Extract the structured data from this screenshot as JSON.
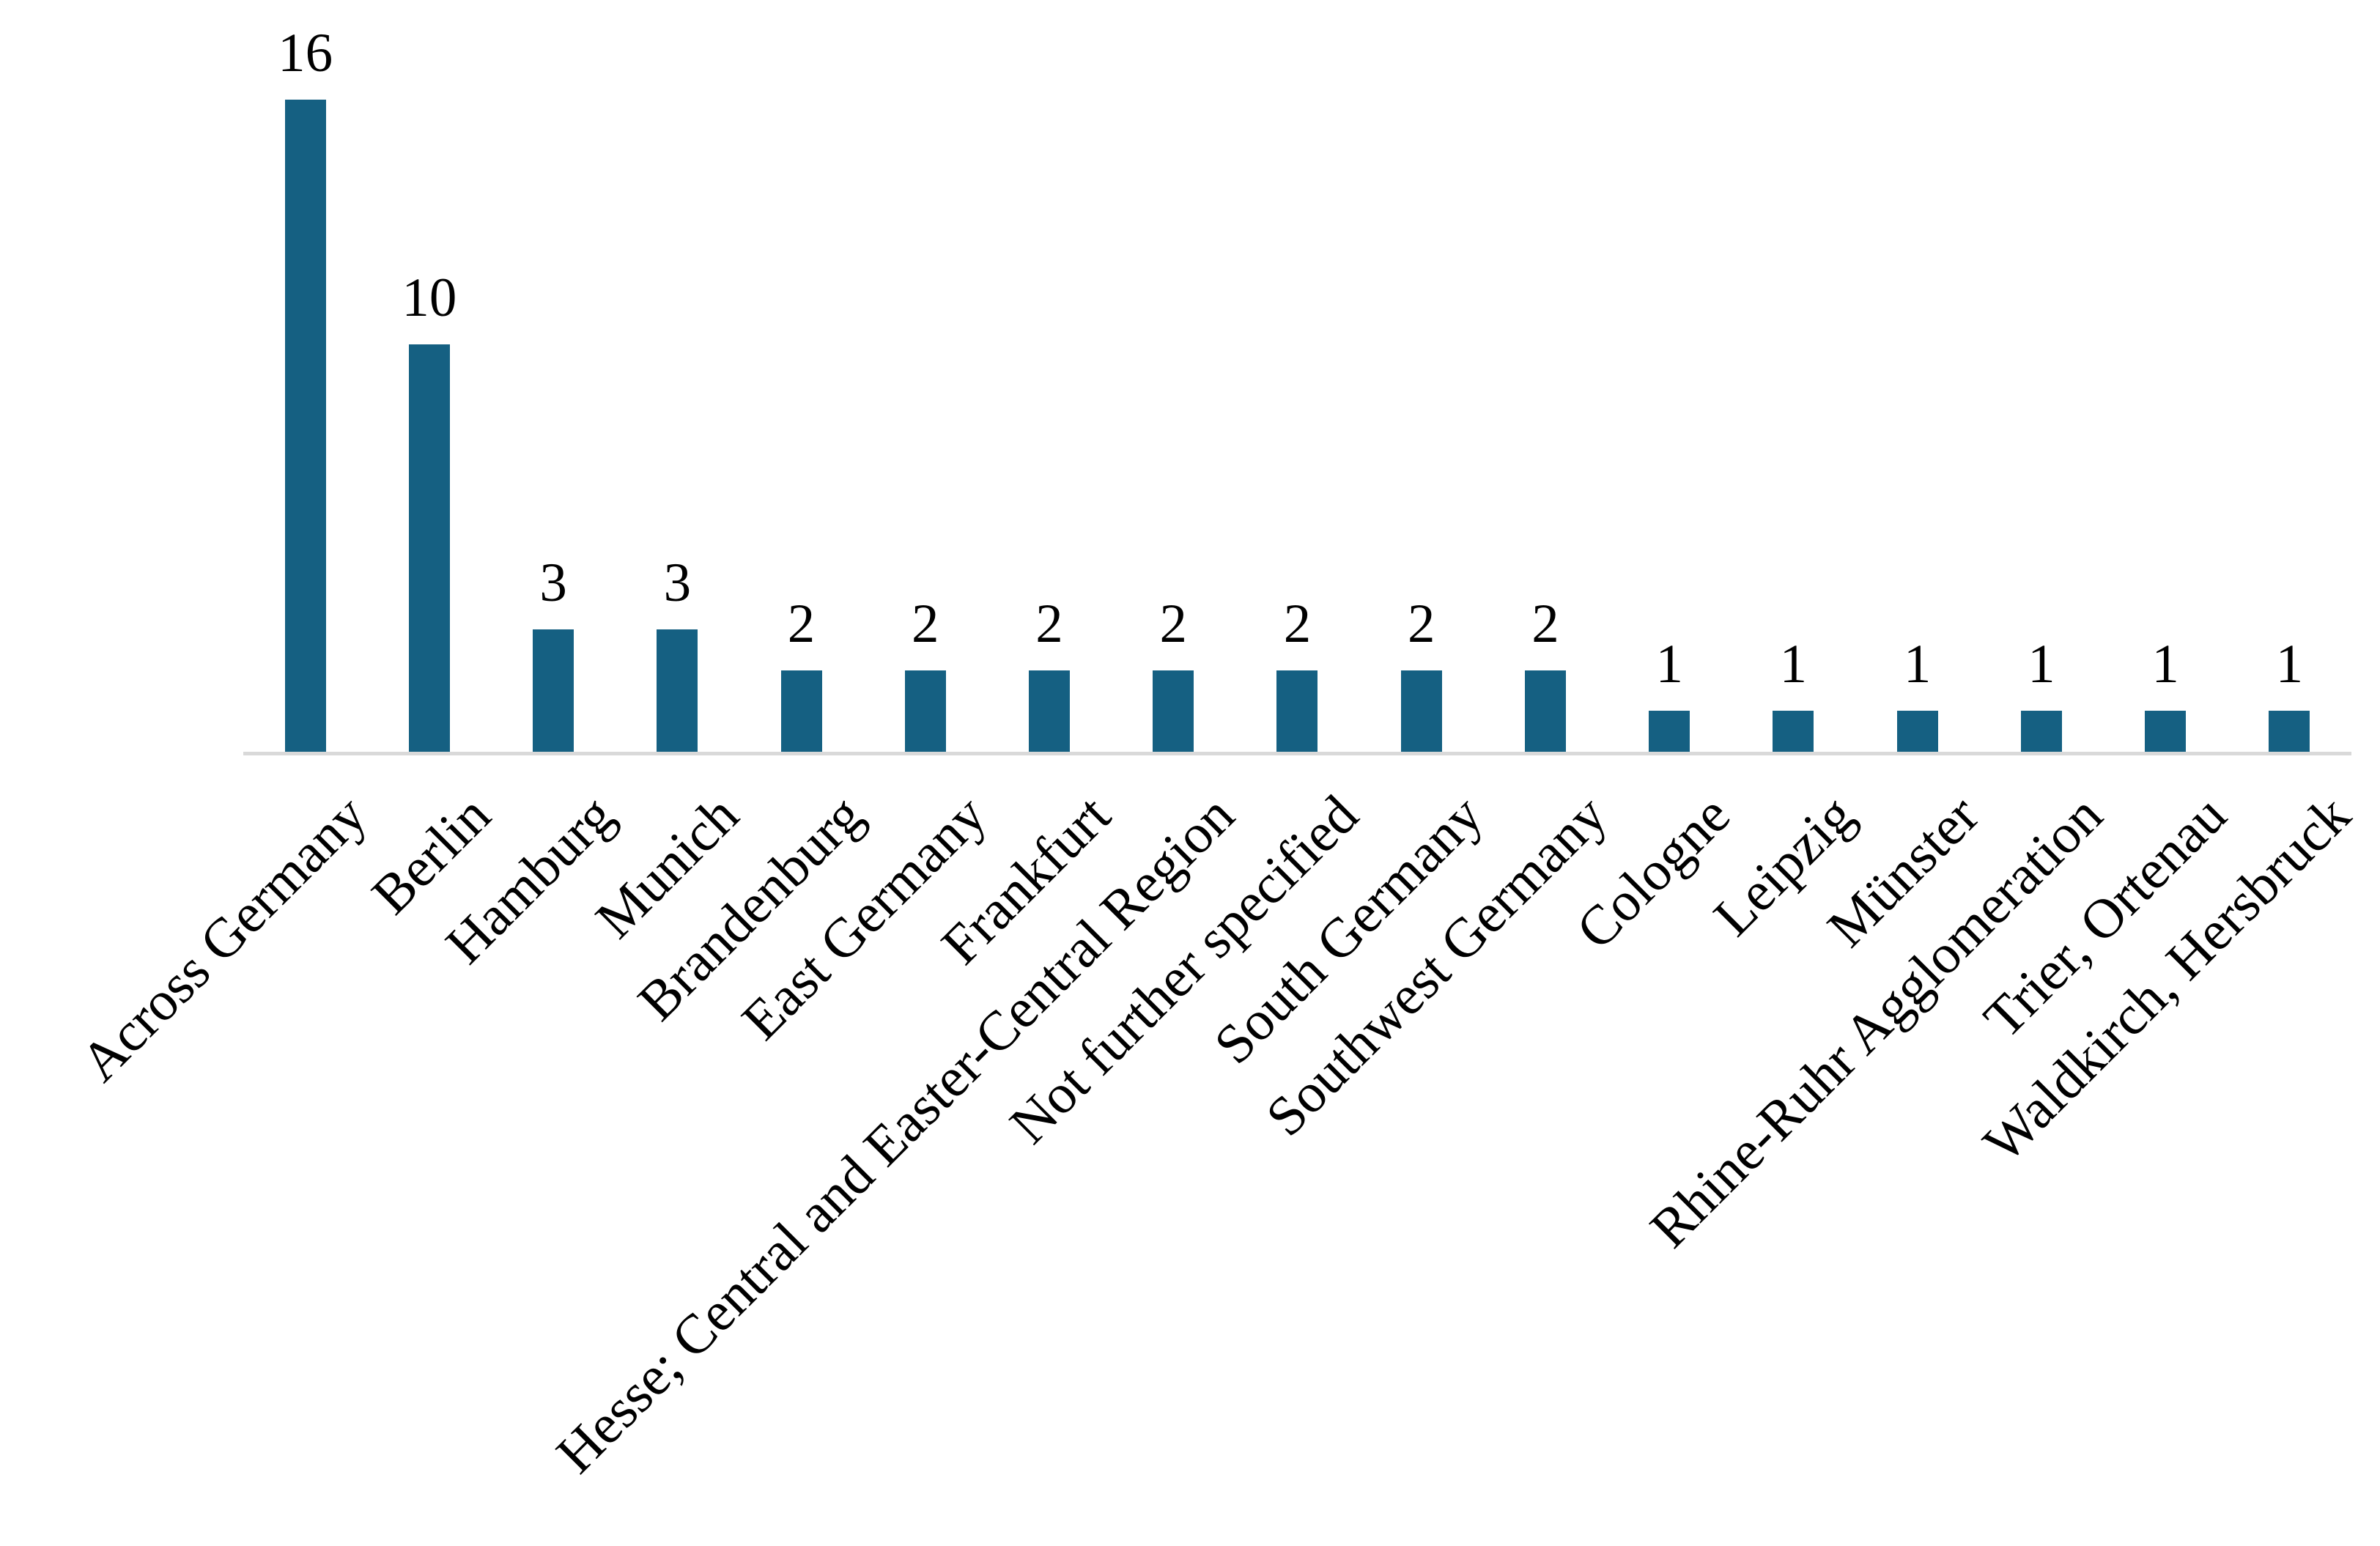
{
  "chart_data": {
    "type": "bar",
    "title": "",
    "xlabel": "",
    "ylabel": "",
    "categories": [
      "Across Germany",
      "Berlin",
      "Hamburg",
      "Munich",
      "Brandenburg",
      "East Germany",
      "Frankfurt",
      "Hesse; Central and Easter-Central Region",
      "Not further specified",
      "South Germany",
      "Southwest Germany",
      "Cologne",
      "Leipzig",
      "Münster",
      "Rhine-Ruhr Agglomeration",
      "Trier, Ortenau",
      "Waldkirch, Hersbruck"
    ],
    "values": [
      16,
      10,
      3,
      3,
      2,
      2,
      2,
      2,
      2,
      2,
      2,
      1,
      1,
      1,
      1,
      1,
      1
    ],
    "ylim": [
      0,
      16
    ],
    "grid": false,
    "legend": null,
    "value_labels_shown": true,
    "category_label_rotation_deg": 45,
    "bar_color": "#156082",
    "axis_line_color": "#D9D9D9",
    "text_color": "#000000",
    "background_color": "#FFFFFF"
  }
}
